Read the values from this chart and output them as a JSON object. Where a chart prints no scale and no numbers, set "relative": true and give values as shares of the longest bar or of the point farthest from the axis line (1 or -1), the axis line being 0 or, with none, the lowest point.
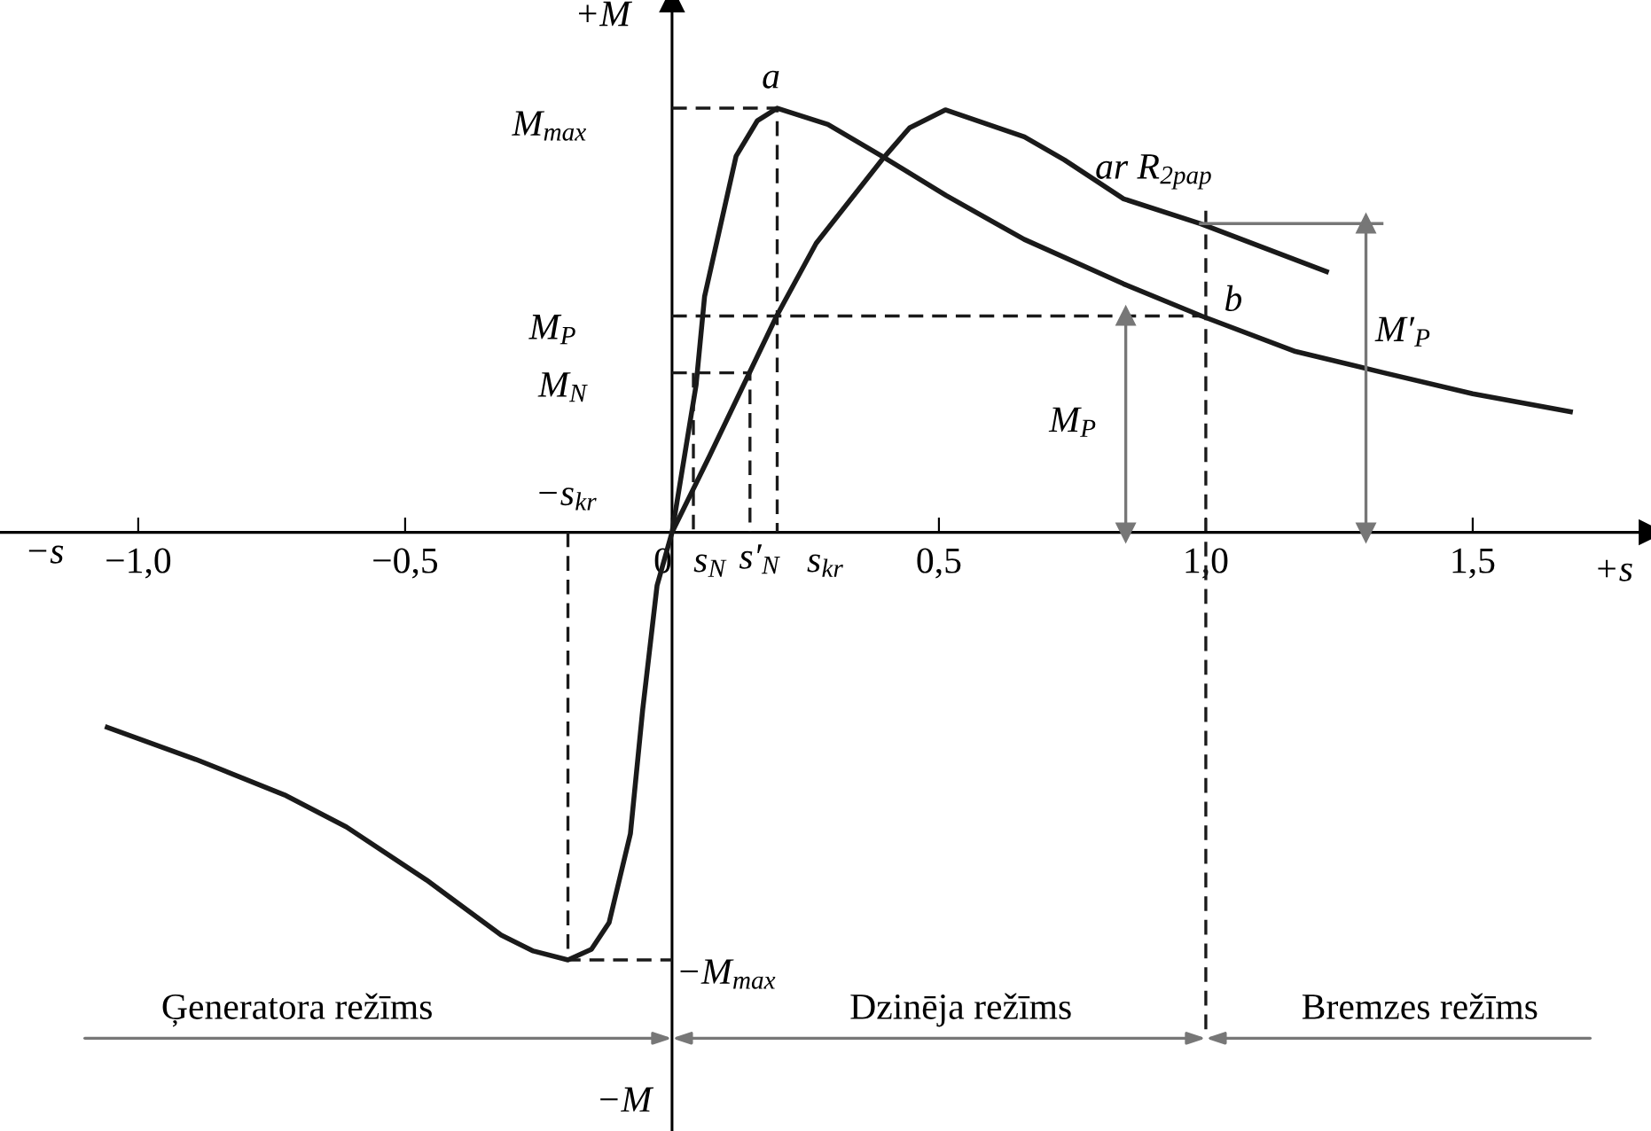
{
  "chart_data": {
    "type": "line",
    "relative": true,
    "tick_labels": "x",
    "line_style": "solid",
    "xlabel": "+s",
    "ylabel": "+M",
    "xlim": [
      -1.259,
      1.834
    ],
    "xticks": [
      {
        "value": -1.0,
        "label": "−1,0"
      },
      {
        "value": -0.5,
        "label": "−0,5"
      },
      {
        "value": 0,
        "label": "0"
      },
      {
        "value": 0.5,
        "label": "0,5"
      },
      {
        "value": 1.0,
        "label": "1,0"
      },
      {
        "value": 1.5,
        "label": "1,5"
      }
    ],
    "series": [
      {
        "color": "#1a1a1a",
        "x": [
          -1.058,
          -0.892,
          -0.726,
          -0.61,
          -0.46,
          -0.32,
          -0.26,
          -0.195,
          -0.151,
          -0.118,
          -0.078,
          -0.055,
          -0.028,
          0,
          0.045,
          0.061,
          0.12,
          0.16,
          0.197,
          0.292,
          0.393,
          0.513,
          0.66,
          0.846,
          0.992,
          1.168,
          1.334,
          1.5,
          1.683
        ],
        "values": [
          -0.456,
          -0.531,
          -0.614,
          -0.689,
          -0.813,
          -0.942,
          -0.979,
          -1.0,
          -0.975,
          -0.913,
          -0.705,
          -0.415,
          -0.124,
          0,
          0.344,
          0.552,
          0.88,
          0.963,
          0.992,
          0.954,
          0.88,
          0.788,
          0.685,
          0.581,
          0.506,
          0.423,
          0.373,
          0.324,
          0.282
        ]
      },
      {
        "color": "#1a1a1a",
        "x": [
          0,
          0.07,
          0.196,
          0.27,
          0.393,
          0.445,
          0.512,
          0.66,
          0.735,
          0.846,
          0.99,
          1.226
        ],
        "values": [
          0,
          0.178,
          0.506,
          0.676,
          0.871,
          0.946,
          0.988,
          0.925,
          0.871,
          0.78,
          0.722,
          0.61
        ]
      },
      {
        "color": "#1a1a1a",
        "line_style": "dashed",
        "x": [
          0,
          0.197,
          0.197
        ],
        "values": [
          0.992,
          0.992,
          0
        ]
      },
      {
        "color": "#1a1a1a",
        "line_style": "dashed",
        "x": [
          0,
          0.99
        ],
        "values": [
          0.506,
          0.506
        ]
      },
      {
        "color": "#1a1a1a",
        "line_style": "dashed",
        "x": [
          0,
          0.146,
          0.146
        ],
        "values": [
          0.373,
          0.373,
          0
        ]
      },
      {
        "color": "#1a1a1a",
        "line_style": "dashed",
        "x": [
          0.04,
          0.04
        ],
        "values": [
          0.373,
          0
        ]
      },
      {
        "color": "#1a1a1a",
        "line_style": "dashed",
        "x": [
          -0.195,
          -0.195,
          0
        ],
        "values": [
          0,
          -1.0,
          -1.0
        ]
      },
      {
        "color": "#777777",
        "x": [
          0.99,
          1.33
        ],
        "values": [
          0.722,
          0.722
        ]
      },
      {
        "color": "#777777",
        "marker": "triangle",
        "x": [
          0.85,
          0.85
        ],
        "values": [
          0,
          0.506
        ]
      },
      {
        "color": "#777777",
        "marker": "triangle",
        "x": [
          1.3,
          1.3
        ],
        "values": [
          0,
          0.722
        ]
      }
    ],
    "ref_lines": [
      {
        "axis": "x",
        "value": 1.0,
        "color": "#1a1a1a",
        "line_style": "dashed"
      }
    ],
    "annotations": [
      "a",
      "M$_{max}$",
      "ar R$_{2pap}$",
      "M$_{P}$",
      "M$_{N}$",
      "b",
      "M′$_{P}$",
      "M$_{P}$",
      "−s$_{kr}$",
      "−s",
      "s$_{N}$",
      "s′$_{N}$",
      "s$_{kr}$",
      "−M$_{max}$",
      "−M",
      "Ģeneratora režīms",
      "Dzinēja režīms",
      "Bremzes režīms"
    ]
  }
}
